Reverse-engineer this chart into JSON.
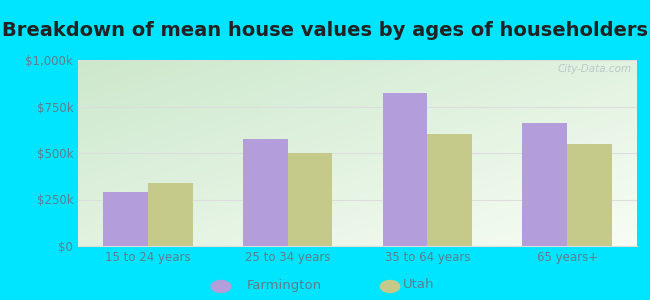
{
  "title": "Breakdown of mean house values by ages of householders",
  "categories": [
    "15 to 24 years",
    "25 to 34 years",
    "35 to 64 years",
    "65 years+"
  ],
  "farmington_values": [
    290000,
    575000,
    820000,
    660000
  ],
  "utah_values": [
    340000,
    500000,
    600000,
    550000
  ],
  "farmington_color": "#b39ddb",
  "utah_color": "#c5c98a",
  "background_outer": "#00e5ff",
  "gradient_top_left": "#cce8cc",
  "gradient_bottom_right": "#f8fdf5",
  "ylim": [
    0,
    1000000
  ],
  "yticks": [
    0,
    250000,
    500000,
    750000,
    1000000
  ],
  "ytick_labels": [
    "$0",
    "$250k",
    "$500k",
    "$750k",
    "$1,000k"
  ],
  "bar_width": 0.32,
  "legend_labels": [
    "Farmington",
    "Utah"
  ],
  "title_fontsize": 14,
  "tick_fontsize": 8.5,
  "legend_fontsize": 9.5,
  "tick_color": "#607d8b",
  "axis_label_color": "#555555",
  "grid_color": "#dddddd",
  "watermark": "City-Data.com"
}
